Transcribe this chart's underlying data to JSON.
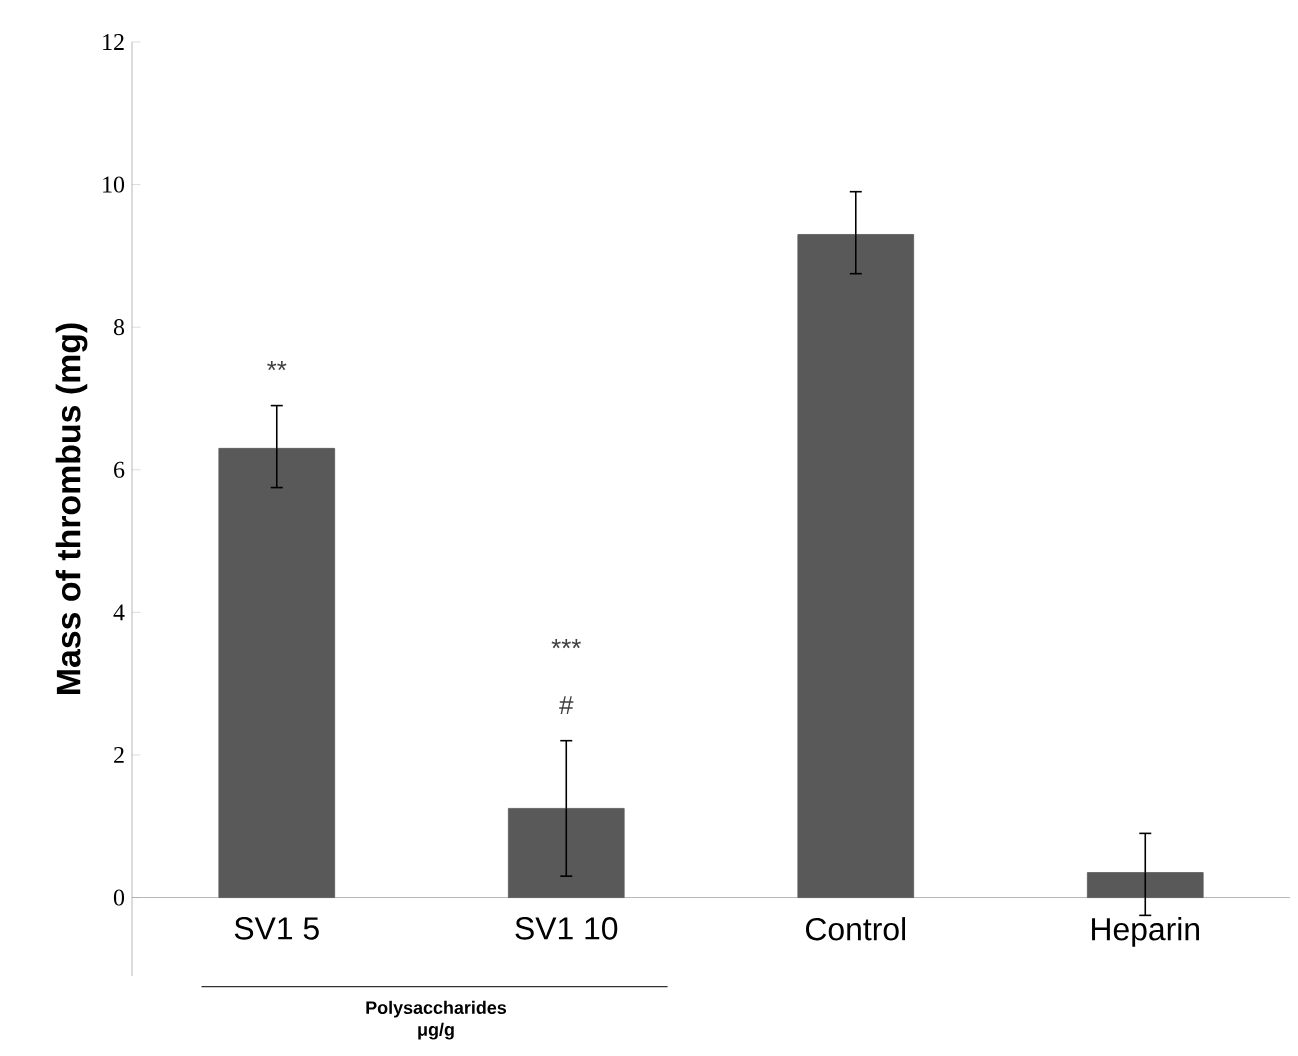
{
  "chart_data": {
    "type": "bar",
    "ylabel": "Mass of thrombus (mg)",
    "categories": [
      "SV1 5",
      "SV1 10",
      "Control",
      "Heparin"
    ],
    "values": [
      6.3,
      1.25,
      9.3,
      0.35
    ],
    "errors": [
      [
        5.75,
        6.9
      ],
      [
        0.3,
        2.2
      ],
      [
        8.75,
        9.9
      ],
      [
        -0.25,
        0.9
      ]
    ],
    "color": "#595959",
    "ylim": [
      -1.1,
      12
    ],
    "yticks": [
      0,
      2,
      4,
      6,
      8,
      10,
      12
    ],
    "annotations": [
      "**",
      "***",
      "#",
      "Polysaccharides μg/g"
    ]
  }
}
